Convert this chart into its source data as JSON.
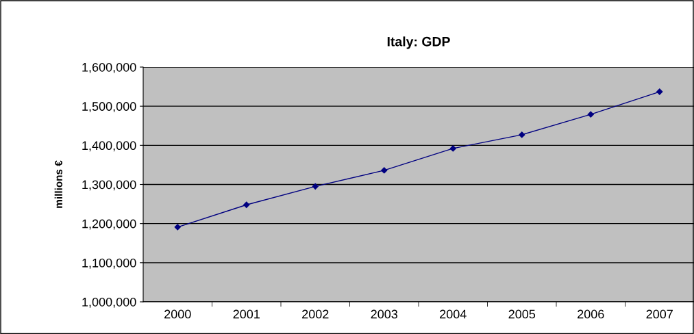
{
  "chart_data": {
    "type": "line",
    "title": "Italy: GDP",
    "ylabel": "millions €",
    "categories": [
      "2000",
      "2001",
      "2002",
      "2003",
      "2004",
      "2005",
      "2006",
      "2007"
    ],
    "series": [
      {
        "color": "#000080",
        "values": [
          1191000,
          1248000,
          1295000,
          1336000,
          1392000,
          1427000,
          1479000,
          1537000
        ]
      }
    ],
    "ylim": [
      1000000,
      1600000
    ],
    "yticks": [
      {
        "value": 1000000,
        "label": "1,000,000"
      },
      {
        "value": 1100000,
        "label": "1,100,000"
      },
      {
        "value": 1200000,
        "label": "1,200,000"
      },
      {
        "value": 1300000,
        "label": "1,300,000"
      },
      {
        "value": 1400000,
        "label": "1,400,000"
      },
      {
        "value": 1500000,
        "label": "1,500,000"
      },
      {
        "value": 1600000,
        "label": "1,600,000"
      }
    ],
    "grid": "y",
    "marker": "diamond",
    "line_style": "solid",
    "legend": false
  }
}
